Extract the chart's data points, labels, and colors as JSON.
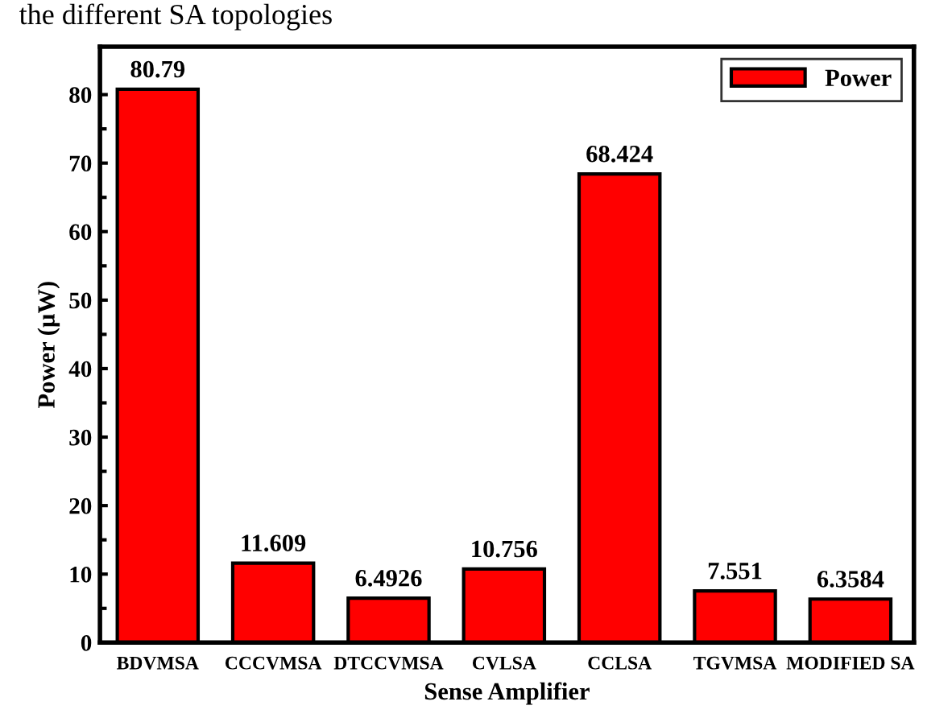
{
  "chart_data": {
    "type": "bar",
    "title": "the different SA topologies",
    "xlabel": "Sense Amplifier",
    "ylabel": "Power (µW)",
    "categories": [
      "BDVMSA",
      "CCCVMSA",
      "DTCCVMSA",
      "CVLSA",
      "CCLSA",
      "TGVMSA",
      "MODIFIED SA"
    ],
    "series": [
      {
        "name": "Power",
        "color": "#ff0000",
        "values": [
          80.79,
          11.609,
          6.4926,
          10.756,
          68.424,
          7.551,
          6.3584
        ]
      }
    ],
    "data_labels": true,
    "ylim": [
      0,
      87
    ],
    "yticks": [
      0,
      10,
      20,
      30,
      40,
      50,
      60,
      70,
      80
    ],
    "grid": false,
    "legend": "top right"
  }
}
